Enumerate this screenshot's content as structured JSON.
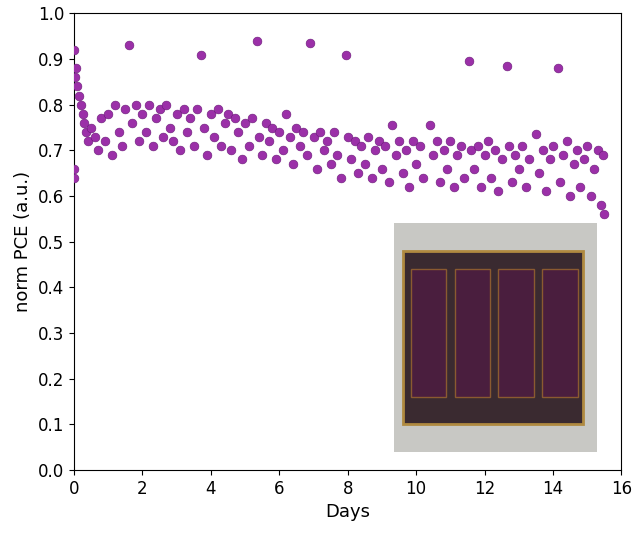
{
  "chart_data": {
    "type": "scatter",
    "x_label": "Days",
    "y_label": "norm PCE (a.u.)",
    "color": "#9b30a8",
    "marker": "o",
    "x": [
      0,
      0,
      0,
      0.03,
      0.06,
      0.1,
      0.15,
      0.2,
      0.25,
      0.3,
      0.35,
      0.4,
      0.5,
      0.6,
      0.7,
      0.8,
      0.9,
      1.0,
      1.1,
      1.2,
      1.3,
      1.4,
      1.5,
      1.6,
      1.7,
      1.8,
      1.9,
      2.0,
      2.1,
      2.2,
      2.3,
      2.4,
      2.5,
      2.6,
      2.7,
      2.8,
      2.9,
      3.0,
      3.1,
      3.2,
      3.3,
      3.4,
      3.5,
      3.6,
      3.7,
      3.8,
      3.9,
      4.0,
      4.1,
      4.2,
      4.3,
      4.4,
      4.5,
      4.6,
      4.7,
      4.8,
      4.9,
      5.0,
      5.1,
      5.2,
      5.35,
      5.4,
      5.5,
      5.6,
      5.7,
      5.8,
      5.9,
      6.0,
      6.1,
      6.2,
      6.3,
      6.4,
      6.5,
      6.6,
      6.7,
      6.8,
      6.9,
      7.0,
      7.1,
      7.2,
      7.3,
      7.4,
      7.5,
      7.6,
      7.7,
      7.8,
      7.95,
      8.0,
      8.1,
      8.2,
      8.3,
      8.4,
      8.5,
      8.6,
      8.7,
      8.8,
      8.9,
      9.0,
      9.1,
      9.2,
      9.3,
      9.4,
      9.5,
      9.6,
      9.7,
      9.8,
      9.9,
      10.0,
      10.1,
      10.2,
      10.4,
      10.5,
      10.6,
      10.7,
      10.8,
      10.9,
      11.0,
      11.1,
      11.2,
      11.3,
      11.4,
      11.55,
      11.6,
      11.7,
      11.8,
      11.9,
      12.0,
      12.1,
      12.2,
      12.3,
      12.4,
      12.5,
      12.65,
      12.7,
      12.8,
      12.9,
      13.0,
      13.1,
      13.2,
      13.3,
      13.5,
      13.6,
      13.7,
      13.8,
      13.9,
      14.0,
      14.15,
      14.2,
      14.3,
      14.4,
      14.5,
      14.6,
      14.7,
      14.8,
      14.9,
      15.0,
      15.1,
      15.2,
      15.3,
      15.4,
      15.45,
      15.5
    ],
    "values": [
      0.64,
      0.66,
      0.92,
      0.86,
      0.88,
      0.84,
      0.82,
      0.8,
      0.78,
      0.76,
      0.74,
      0.72,
      0.75,
      0.73,
      0.7,
      0.77,
      0.72,
      0.78,
      0.69,
      0.8,
      0.74,
      0.71,
      0.79,
      0.93,
      0.76,
      0.8,
      0.72,
      0.78,
      0.74,
      0.8,
      0.71,
      0.77,
      0.79,
      0.73,
      0.8,
      0.75,
      0.72,
      0.78,
      0.7,
      0.79,
      0.74,
      0.77,
      0.71,
      0.79,
      0.91,
      0.75,
      0.69,
      0.78,
      0.73,
      0.79,
      0.71,
      0.76,
      0.78,
      0.7,
      0.77,
      0.74,
      0.68,
      0.76,
      0.71,
      0.77,
      0.94,
      0.73,
      0.69,
      0.76,
      0.72,
      0.75,
      0.68,
      0.74,
      0.7,
      0.78,
      0.73,
      0.67,
      0.75,
      0.71,
      0.74,
      0.69,
      0.935,
      0.73,
      0.66,
      0.74,
      0.7,
      0.72,
      0.67,
      0.74,
      0.69,
      0.64,
      0.91,
      0.73,
      0.68,
      0.72,
      0.65,
      0.71,
      0.67,
      0.73,
      0.64,
      0.7,
      0.72,
      0.66,
      0.71,
      0.63,
      0.755,
      0.69,
      0.72,
      0.65,
      0.7,
      0.62,
      0.72,
      0.67,
      0.71,
      0.64,
      0.755,
      0.69,
      0.72,
      0.63,
      0.7,
      0.66,
      0.72,
      0.62,
      0.69,
      0.71,
      0.64,
      0.895,
      0.7,
      0.66,
      0.71,
      0.62,
      0.69,
      0.72,
      0.64,
      0.7,
      0.61,
      0.68,
      0.885,
      0.71,
      0.63,
      0.69,
      0.66,
      0.71,
      0.62,
      0.68,
      0.735,
      0.65,
      0.7,
      0.61,
      0.68,
      0.71,
      0.88,
      0.63,
      0.69,
      0.72,
      0.6,
      0.67,
      0.7,
      0.62,
      0.68,
      0.71,
      0.6,
      0.66,
      0.7,
      0.58,
      0.69,
      0.56
    ],
    "xlim": [
      0,
      16
    ],
    "xticks": [
      0,
      2,
      4,
      6,
      8,
      10,
      12,
      14,
      16
    ],
    "ylim": [
      0,
      1.0
    ],
    "yticks": [
      {
        "value": 0.0,
        "label": "0.0"
      },
      {
        "value": 0.1,
        "label": "0.1"
      },
      {
        "value": 0.2,
        "label": "0.2"
      },
      {
        "value": 0.3,
        "label": "0.3"
      },
      {
        "value": 0.4,
        "label": "0.4"
      },
      {
        "value": 0.5,
        "label": "0.5"
      },
      {
        "value": 0.6,
        "label": "0.6"
      },
      {
        "value": 0.7,
        "label": "0.7"
      },
      {
        "value": 0.8,
        "label": "0.8"
      },
      {
        "value": 0.9,
        "label": "0.9"
      },
      {
        "value": 1.0,
        "label": "1.0"
      }
    ],
    "grid": false
  }
}
